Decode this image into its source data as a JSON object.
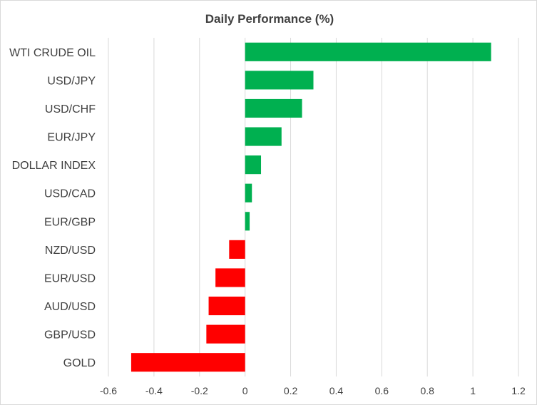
{
  "chart_data": {
    "type": "bar",
    "orientation": "horizontal",
    "title": "Daily Performance (%)",
    "xlabel": "",
    "ylabel": "",
    "categories": [
      "WTI CRUDE OIL",
      "USD/JPY",
      "USD/CHF",
      "EUR/JPY",
      "DOLLAR INDEX",
      "USD/CAD",
      "EUR/GBP",
      "NZD/USD",
      "EUR/USD",
      "AUD/USD",
      "GBP/USD",
      "GOLD"
    ],
    "values": [
      1.08,
      0.3,
      0.25,
      0.16,
      0.07,
      0.03,
      0.02,
      -0.07,
      -0.13,
      -0.16,
      -0.17,
      -0.5
    ],
    "xlim": [
      -0.6,
      1.2
    ],
    "xticks": [
      "-0.6",
      "-0.4",
      "-0.2",
      "0",
      "0.2",
      "0.4",
      "0.6",
      "0.8",
      "1",
      "1.2"
    ],
    "grid": "vertical",
    "legend": "none",
    "colors": {
      "positive": "#00b050",
      "negative": "#ff0000",
      "grid": "#d9d9d9",
      "text": "#404040"
    }
  }
}
